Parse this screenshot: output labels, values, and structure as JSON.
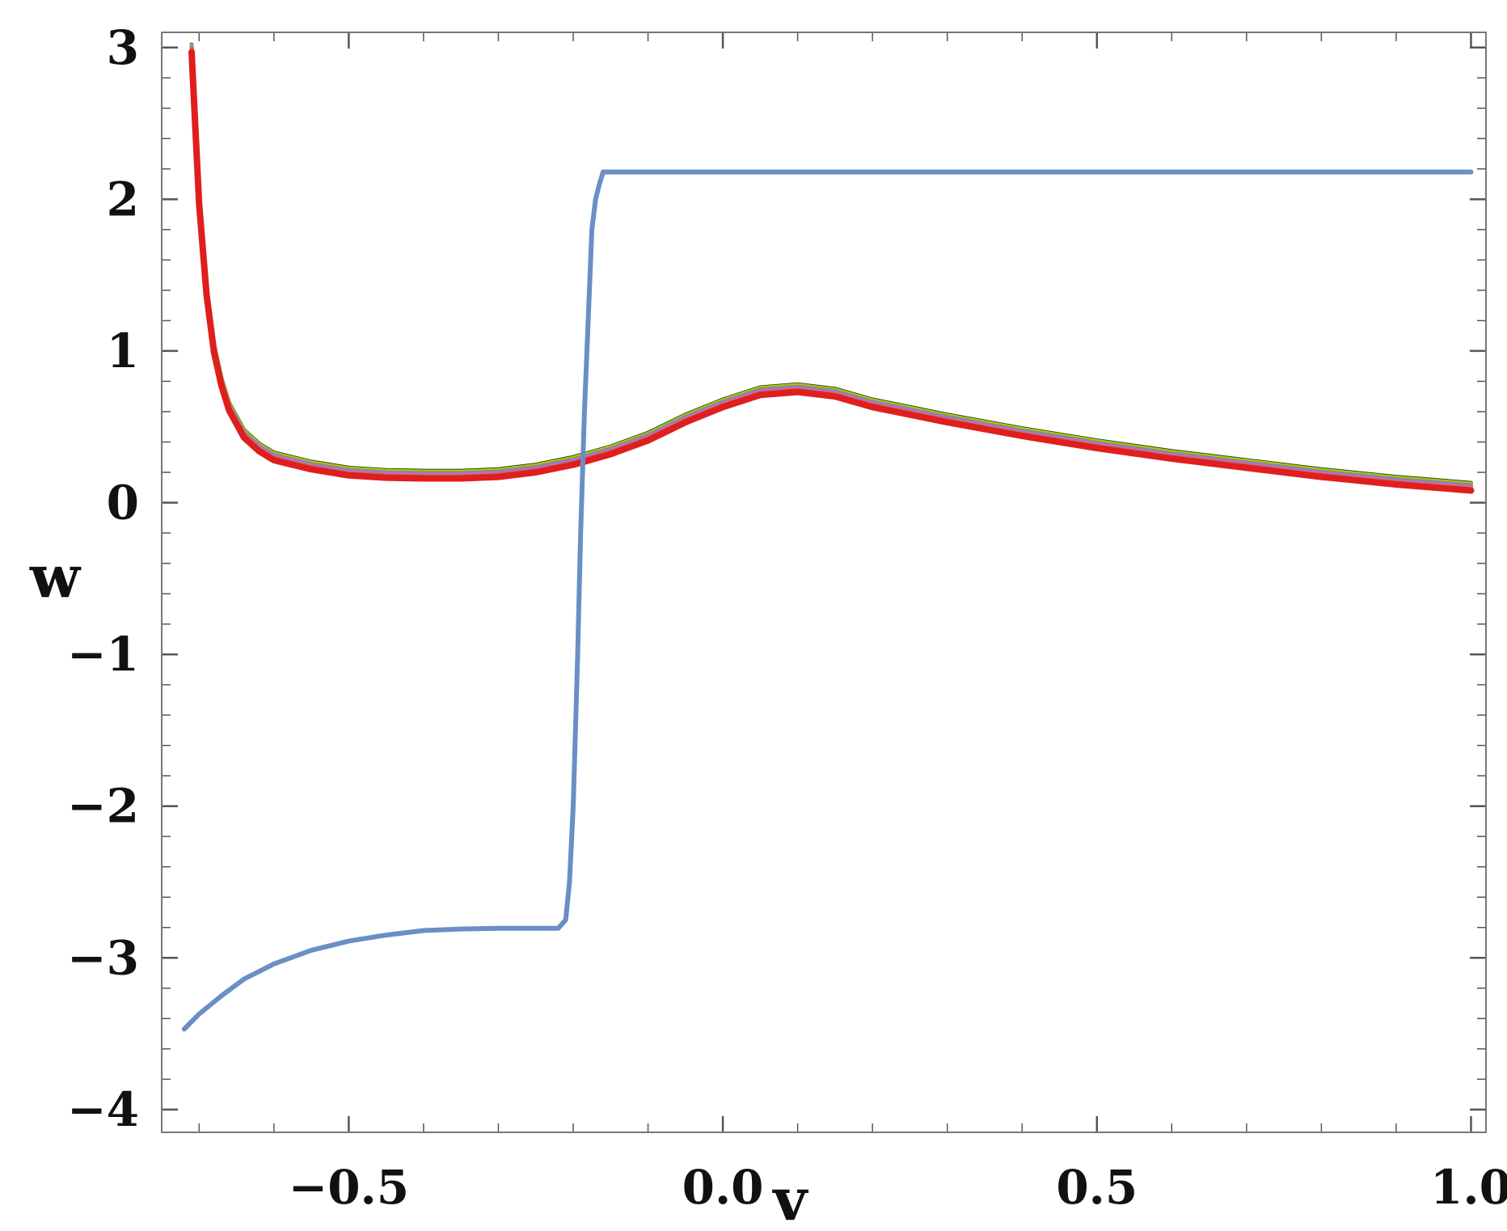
{
  "chart_data": {
    "type": "line",
    "title": "",
    "xlabel": "v",
    "ylabel": "w",
    "xlim": [
      -0.75,
      1.02
    ],
    "ylim": [
      -4.15,
      3.1
    ],
    "x_ticks": [
      -0.5,
      0.0,
      0.5,
      1.0
    ],
    "x_tick_labels": [
      "−0.5",
      "0.0",
      "0.5",
      "1.0"
    ],
    "y_ticks": [
      3,
      2,
      1,
      0,
      -1,
      -2,
      -3,
      -4
    ],
    "y_tick_labels": [
      "3",
      "2",
      "1",
      "0",
      "−1",
      "−2",
      "−3",
      "−4"
    ],
    "grid": false,
    "frame": true,
    "series": [
      {
        "color": "#0a5a14",
        "offset": 0.02,
        "x": [
          -0.71,
          -0.7,
          -0.69,
          -0.68,
          -0.67,
          -0.66,
          -0.64,
          -0.62,
          -0.6,
          -0.55,
          -0.5,
          -0.45,
          -0.4,
          -0.35,
          -0.3,
          -0.25,
          -0.2,
          -0.15,
          -0.1,
          -0.05,
          0.0,
          0.05,
          0.1,
          0.15,
          0.2,
          0.3,
          0.4,
          0.5,
          0.6,
          0.7,
          0.8,
          0.9,
          1.0
        ],
        "y": [
          3.0,
          2.0,
          1.4,
          1.02,
          0.8,
          0.64,
          0.46,
          0.37,
          0.31,
          0.25,
          0.21,
          0.195,
          0.19,
          0.19,
          0.2,
          0.23,
          0.28,
          0.35,
          0.44,
          0.56,
          0.66,
          0.74,
          0.76,
          0.73,
          0.66,
          0.56,
          0.47,
          0.39,
          0.32,
          0.26,
          0.2,
          0.15,
          0.11
        ]
      },
      {
        "color": "#c8c000",
        "offset": 0.015,
        "x": [
          -0.71,
          -0.7,
          -0.69,
          -0.68,
          -0.67,
          -0.66,
          -0.64,
          -0.62,
          -0.6,
          -0.55,
          -0.5,
          -0.45,
          -0.4,
          -0.35,
          -0.3,
          -0.25,
          -0.2,
          -0.15,
          -0.1,
          -0.05,
          0.0,
          0.05,
          0.1,
          0.15,
          0.2,
          0.3,
          0.4,
          0.5,
          0.6,
          0.7,
          0.8,
          0.9,
          1.0
        ],
        "y": [
          3.0,
          2.0,
          1.4,
          1.02,
          0.8,
          0.64,
          0.46,
          0.37,
          0.31,
          0.25,
          0.21,
          0.195,
          0.19,
          0.19,
          0.2,
          0.23,
          0.28,
          0.35,
          0.44,
          0.56,
          0.66,
          0.74,
          0.76,
          0.73,
          0.66,
          0.56,
          0.47,
          0.39,
          0.32,
          0.26,
          0.2,
          0.15,
          0.11
        ]
      },
      {
        "color": "#8a8a8a",
        "offset": 0.005,
        "x": [
          -0.71,
          -0.7,
          -0.69,
          -0.68,
          -0.67,
          -0.66,
          -0.64,
          -0.62,
          -0.6,
          -0.55,
          -0.5,
          -0.45,
          -0.4,
          -0.35,
          -0.3,
          -0.25,
          -0.2,
          -0.15,
          -0.1,
          -0.05,
          0.0,
          0.05,
          0.1,
          0.15,
          0.2,
          0.3,
          0.4,
          0.5,
          0.6,
          0.7,
          0.8,
          0.9,
          1.0
        ],
        "y": [
          3.0,
          2.0,
          1.4,
          1.02,
          0.8,
          0.64,
          0.46,
          0.37,
          0.31,
          0.25,
          0.21,
          0.195,
          0.19,
          0.19,
          0.2,
          0.23,
          0.28,
          0.35,
          0.44,
          0.56,
          0.66,
          0.74,
          0.76,
          0.73,
          0.66,
          0.56,
          0.47,
          0.39,
          0.32,
          0.26,
          0.2,
          0.15,
          0.11
        ]
      },
      {
        "color": "#9a7bd4",
        "offset": -0.005,
        "x": [
          -0.71,
          -0.7,
          -0.69,
          -0.68,
          -0.67,
          -0.66,
          -0.64,
          -0.62,
          -0.6,
          -0.55,
          -0.5,
          -0.45,
          -0.4,
          -0.35,
          -0.3,
          -0.25,
          -0.2,
          -0.15,
          -0.1,
          -0.05,
          0.0,
          0.05,
          0.1,
          0.15,
          0.2,
          0.3,
          0.4,
          0.5,
          0.6,
          0.7,
          0.8,
          0.9,
          1.0
        ],
        "y": [
          3.0,
          2.0,
          1.4,
          1.02,
          0.8,
          0.64,
          0.46,
          0.37,
          0.31,
          0.25,
          0.21,
          0.195,
          0.19,
          0.19,
          0.2,
          0.23,
          0.28,
          0.35,
          0.44,
          0.56,
          0.66,
          0.74,
          0.76,
          0.73,
          0.66,
          0.56,
          0.47,
          0.39,
          0.32,
          0.26,
          0.2,
          0.15,
          0.11
        ]
      },
      {
        "color": "#e06060",
        "offset": -0.015,
        "x": [
          -0.71,
          -0.7,
          -0.69,
          -0.68,
          -0.67,
          -0.66,
          -0.64,
          -0.62,
          -0.6,
          -0.55,
          -0.5,
          -0.45,
          -0.4,
          -0.35,
          -0.3,
          -0.25,
          -0.2,
          -0.15,
          -0.1,
          -0.05,
          0.0,
          0.05,
          0.1,
          0.15,
          0.2,
          0.3,
          0.4,
          0.5,
          0.6,
          0.7,
          0.8,
          0.9,
          1.0
        ],
        "y": [
          3.0,
          2.0,
          1.4,
          1.02,
          0.8,
          0.64,
          0.46,
          0.37,
          0.31,
          0.25,
          0.21,
          0.195,
          0.19,
          0.19,
          0.2,
          0.23,
          0.28,
          0.35,
          0.44,
          0.56,
          0.66,
          0.74,
          0.76,
          0.73,
          0.66,
          0.56,
          0.47,
          0.39,
          0.32,
          0.26,
          0.2,
          0.15,
          0.11
        ]
      },
      {
        "color": "#e01e1e",
        "offset": -0.03,
        "x": [
          -0.71,
          -0.7,
          -0.69,
          -0.68,
          -0.67,
          -0.66,
          -0.64,
          -0.62,
          -0.6,
          -0.55,
          -0.5,
          -0.45,
          -0.4,
          -0.35,
          -0.3,
          -0.25,
          -0.2,
          -0.15,
          -0.1,
          -0.05,
          0.0,
          0.05,
          0.1,
          0.15,
          0.2,
          0.3,
          0.4,
          0.5,
          0.6,
          0.7,
          0.8,
          0.9,
          1.0
        ],
        "y": [
          3.0,
          2.0,
          1.4,
          1.02,
          0.8,
          0.64,
          0.46,
          0.37,
          0.31,
          0.25,
          0.21,
          0.195,
          0.19,
          0.19,
          0.2,
          0.23,
          0.28,
          0.35,
          0.44,
          0.56,
          0.66,
          0.74,
          0.76,
          0.73,
          0.66,
          0.56,
          0.47,
          0.39,
          0.32,
          0.26,
          0.2,
          0.15,
          0.11
        ]
      },
      {
        "color": "#6a8fc4",
        "offset": 0,
        "x": [
          -0.72,
          -0.7,
          -0.67,
          -0.64,
          -0.6,
          -0.55,
          -0.5,
          -0.45,
          -0.4,
          -0.35,
          -0.3,
          -0.25,
          -0.22,
          -0.21,
          -0.205,
          -0.2,
          -0.197,
          -0.194,
          -0.19,
          -0.185,
          -0.18,
          -0.175,
          -0.17,
          -0.165,
          -0.16,
          -0.15,
          -0.1,
          0.0,
          0.2,
          0.4,
          0.6,
          0.8,
          1.0
        ],
        "y": [
          -3.47,
          -3.37,
          -3.25,
          -3.14,
          -3.04,
          -2.95,
          -2.89,
          -2.85,
          -2.82,
          -2.81,
          -2.805,
          -2.805,
          -2.805,
          -2.75,
          -2.5,
          -2.0,
          -1.5,
          -1.0,
          -0.2,
          0.6,
          1.2,
          1.8,
          2.0,
          2.1,
          2.18,
          2.18,
          2.18,
          2.18,
          2.18,
          2.18,
          2.18,
          2.18,
          2.18
        ]
      }
    ]
  }
}
